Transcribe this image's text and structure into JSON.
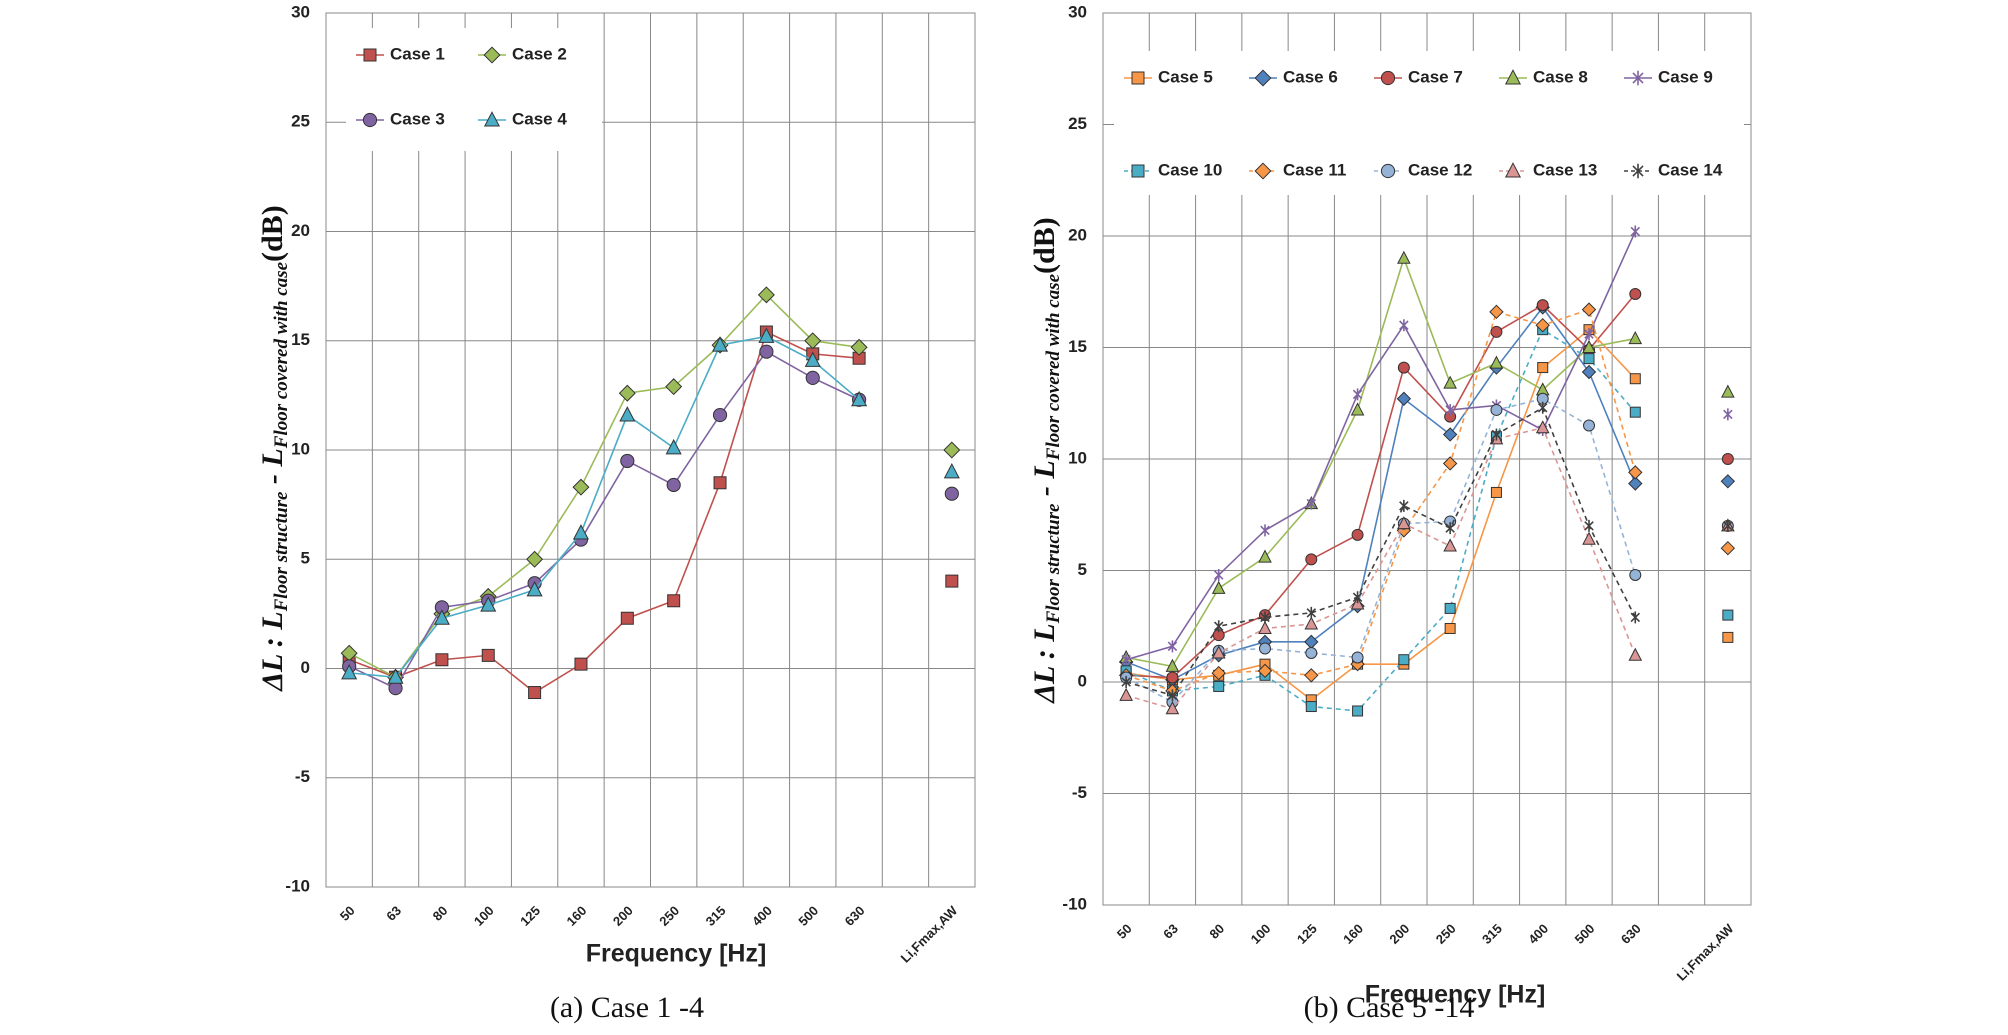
{
  "chart_data": [
    {
      "type": "line",
      "caption": "(a) Case 1 -4",
      "xlabel": "Frequency  [Hz]",
      "ylabel": [
        "ΔL : L",
        "Floor structure",
        " - L",
        "Floor covered with case",
        "(dB)"
      ],
      "categories": [
        "50",
        "63",
        "80",
        "100",
        "125",
        "160",
        "200",
        "250",
        "315",
        "400",
        "500",
        "630",
        null,
        "Li,Fmax,AW"
      ],
      "ylim": [
        -10,
        30
      ],
      "yticks": [
        -10,
        -5,
        0,
        5,
        10,
        15,
        20,
        25,
        30
      ],
      "grid": true,
      "series": [
        {
          "name": "Case 1",
          "color": "#c0504d",
          "marker": "square",
          "dashed": false,
          "values": [
            0.4,
            -0.4,
            0.4,
            0.6,
            -1.1,
            0.2,
            2.3,
            3.1,
            8.5,
            15.4,
            14.4,
            14.2,
            null,
            4
          ]
        },
        {
          "name": "Case 2",
          "color": "#9bbb59",
          "marker": "diamond",
          "dashed": false,
          "values": [
            0.7,
            -0.4,
            2.5,
            3.3,
            5.0,
            8.3,
            12.6,
            12.9,
            14.8,
            17.1,
            15.0,
            14.7,
            null,
            10
          ]
        },
        {
          "name": "Case 3",
          "color": "#8064a2",
          "marker": "circle",
          "dashed": false,
          "values": [
            0.1,
            -0.9,
            2.8,
            3.1,
            3.9,
            5.9,
            9.5,
            8.4,
            11.6,
            14.5,
            13.3,
            12.3,
            null,
            8
          ]
        },
        {
          "name": "Case 4",
          "color": "#4bacc6",
          "marker": "triangle",
          "dashed": false,
          "values": [
            -0.2,
            -0.4,
            2.3,
            2.9,
            3.6,
            6.2,
            11.6,
            10.1,
            14.8,
            15.2,
            14.1,
            12.3,
            null,
            9
          ]
        }
      ]
    },
    {
      "type": "line",
      "caption": "(b) Case 5 -14",
      "xlabel": "Frequency [Hz]",
      "ylabel": [
        "ΔL : L",
        "Floor structure",
        " - L",
        "Floor covered with case",
        "(dB)"
      ],
      "categories": [
        "50",
        "63",
        "80",
        "100",
        "125",
        "160",
        "200",
        "250",
        "315",
        "400",
        "500",
        "630",
        null,
        "Li,Fmax,AW"
      ],
      "ylim": [
        -10,
        30
      ],
      "yticks": [
        -10,
        -5,
        0,
        5,
        10,
        15,
        20,
        25,
        30
      ],
      "grid": true,
      "series": [
        {
          "name": "Case 5",
          "color": "#f79646",
          "marker": "square",
          "dashed": false,
          "values": [
            0.4,
            0.1,
            0.3,
            0.8,
            -0.8,
            0.8,
            0.8,
            2.4,
            8.5,
            14.1,
            15.8,
            13.6,
            null,
            2
          ]
        },
        {
          "name": "Case 6",
          "color": "#4f81bd",
          "marker": "diamond",
          "dashed": false,
          "values": [
            0.9,
            0.1,
            1.2,
            1.8,
            1.8,
            3.4,
            12.7,
            11.1,
            14.1,
            16.8,
            13.9,
            8.9,
            null,
            9
          ]
        },
        {
          "name": "Case 7",
          "color": "#c0504d",
          "marker": "circle",
          "dashed": false,
          "values": [
            0.3,
            0.2,
            2.1,
            3.0,
            5.5,
            6.6,
            14.1,
            11.9,
            15.7,
            16.9,
            14.9,
            17.4,
            null,
            10
          ]
        },
        {
          "name": "Case 8",
          "color": "#9bbb59",
          "marker": "triangle",
          "dashed": false,
          "values": [
            1.1,
            0.7,
            4.2,
            5.6,
            8.0,
            12.2,
            19.0,
            13.4,
            14.3,
            13.1,
            15.0,
            15.4,
            null,
            13
          ]
        },
        {
          "name": "Case 9",
          "color": "#8064a2",
          "marker": "star",
          "dashed": false,
          "values": [
            1.0,
            1.6,
            4.8,
            6.8,
            8.0,
            12.9,
            16.0,
            12.2,
            12.4,
            11.3,
            15.6,
            20.2,
            null,
            12
          ]
        },
        {
          "name": "Case 10",
          "color": "#4bacc6",
          "marker": "square",
          "dashed": true,
          "values": [
            0.5,
            -0.4,
            -0.2,
            0.3,
            -1.1,
            -1.3,
            1.0,
            3.3,
            11.0,
            15.8,
            14.5,
            12.1,
            null,
            3
          ]
        },
        {
          "name": "Case 11",
          "color": "#f79646",
          "marker": "diamond",
          "dashed": true,
          "values": [
            0.3,
            -0.4,
            0.4,
            0.5,
            0.3,
            0.8,
            6.8,
            9.8,
            16.6,
            16.0,
            16.7,
            9.4,
            null,
            6
          ]
        },
        {
          "name": "Case 12",
          "color": "#95b3d7",
          "marker": "circle",
          "dashed": true,
          "values": [
            0.2,
            -0.9,
            1.4,
            1.5,
            1.3,
            1.1,
            7.1,
            7.2,
            12.2,
            12.7,
            11.5,
            4.8,
            null,
            7
          ]
        },
        {
          "name": "Case 13",
          "color": "#d99694",
          "marker": "triangle",
          "dashed": true,
          "values": [
            -0.6,
            -1.2,
            1.3,
            2.4,
            2.6,
            3.5,
            7.1,
            6.1,
            10.9,
            11.4,
            6.4,
            1.2,
            null,
            7
          ]
        },
        {
          "name": "Case 14",
          "color": "#404040",
          "marker": "star",
          "dashed": true,
          "values": [
            0.0,
            -0.6,
            2.5,
            2.9,
            3.1,
            3.8,
            7.9,
            6.9,
            11.1,
            12.3,
            7.0,
            2.9,
            null,
            7
          ]
        }
      ]
    }
  ]
}
